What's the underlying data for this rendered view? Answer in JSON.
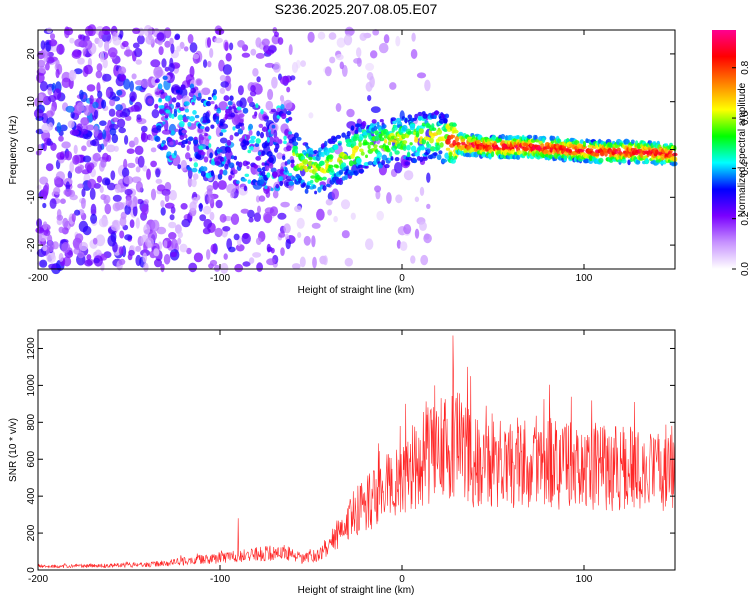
{
  "title": "S236.2025.207.08.05.E07",
  "chart_data": [
    {
      "type": "heatmap",
      "xlabel": "Height of straight line (km)",
      "ylabel": "Frequency (Hz)",
      "xlim": [
        -200,
        150
      ],
      "ylim": [
        -25,
        25
      ],
      "x_ticks": [
        -200,
        -100,
        0,
        100
      ],
      "y_ticks": [
        -20,
        -10,
        0,
        10,
        20
      ],
      "colorbar": {
        "label": "Normalized spectral amplitude",
        "range": [
          0.0,
          0.95
        ],
        "ticks": [
          0.0,
          0.2,
          0.4,
          0.6,
          0.8
        ],
        "colors": [
          "#ffffff",
          "#c792ff",
          "#7a00ff",
          "#0000ff",
          "#00ffff",
          "#00ff00",
          "#ffff00",
          "#ff8000",
          "#ff0000",
          "#ff0090"
        ]
      },
      "ridge": {
        "x": [
          -130,
          -110,
          -95,
          -85,
          -75,
          -65,
          -58,
          -52,
          -45,
          -38,
          -30,
          -22,
          -15,
          -8,
          -2,
          5,
          12,
          18,
          25,
          35,
          50,
          70,
          90,
          110,
          130,
          150
        ],
        "y": [
          6,
          4,
          2,
          0,
          0.5,
          0,
          -2,
          -4,
          -4.5,
          -2.5,
          -1,
          0.5,
          1,
          1.5,
          2,
          2,
          3,
          3,
          2,
          1,
          0.5,
          0.5,
          0,
          -0.5,
          -0.5,
          -1
        ]
      }
    },
    {
      "type": "line",
      "xlabel": "Height of straight line (km)",
      "ylabel": "SNR (10 * v/v)",
      "xlim": [
        -200,
        150
      ],
      "ylim": [
        0,
        1300
      ],
      "x_ticks": [
        -200,
        -100,
        0,
        100
      ],
      "y_ticks": [
        0,
        200,
        400,
        600,
        800,
        1000,
        1200
      ],
      "color": "#ff0000",
      "envelope": {
        "x": [
          -200,
          -160,
          -140,
          -120,
          -100,
          -80,
          -62,
          -55,
          -45,
          -35,
          -25,
          -15,
          -5,
          5,
          15,
          25,
          30,
          40,
          60,
          80,
          100,
          120,
          150
        ],
        "y": [
          20,
          25,
          30,
          50,
          70,
          90,
          100,
          60,
          90,
          200,
          330,
          400,
          480,
          560,
          650,
          700,
          720,
          600,
          590,
          600,
          580,
          560,
          580
        ]
      },
      "peaks": [
        {
          "x": -90,
          "y": 280
        },
        {
          "x": 2,
          "y": 900
        },
        {
          "x": 18,
          "y": 1000
        },
        {
          "x": 28,
          "y": 1270
        },
        {
          "x": 36,
          "y": 1100
        }
      ]
    }
  ]
}
